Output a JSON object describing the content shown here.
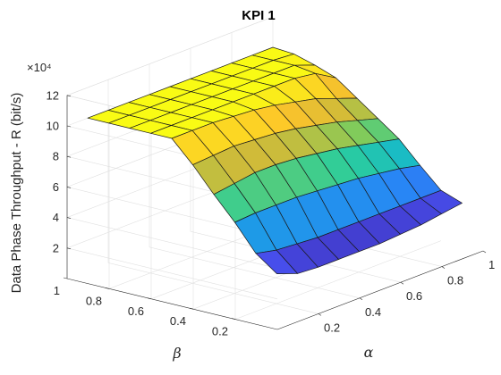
{
  "chart_data": {
    "type": "surface",
    "title": "KPI 1",
    "zlabel": "Data Phase Throughput - R (bit/s)",
    "xlabel": "α",
    "ylabel": "β",
    "zscale_label": "×10⁴",
    "xlim": [
      0,
      1
    ],
    "ylim": [
      0,
      1
    ],
    "zlim": [
      0,
      12
    ],
    "x_ticks": [
      0.2,
      0.4,
      0.6,
      0.8,
      1
    ],
    "y_ticks": [
      0.2,
      0.4,
      0.6,
      0.8,
      1
    ],
    "z_ticks": [
      2,
      4,
      6,
      8,
      10,
      12
    ],
    "grid": "on",
    "colormap": "parula",
    "alpha": [
      0.1,
      0.2,
      0.3,
      0.4,
      0.5,
      0.6,
      0.7,
      0.8,
      0.9,
      1.0
    ],
    "beta": [
      1.0,
      0.9,
      0.8,
      0.7,
      0.6,
      0.5,
      0.4,
      0.3,
      0.2,
      0.1
    ],
    "z_rows_by_beta": [
      [
        10.0,
        10.0,
        10.0,
        10.0,
        10.0,
        10.0,
        10.0,
        10.0,
        10.0,
        10.0
      ],
      [
        10.0,
        10.0,
        10.0,
        10.0,
        10.0,
        10.0,
        10.0,
        10.0,
        10.0,
        9.9
      ],
      [
        10.0,
        10.0,
        10.0,
        10.0,
        10.0,
        10.0,
        10.0,
        10.0,
        10.0,
        9.5
      ],
      [
        10.0,
        10.0,
        10.0,
        10.0,
        10.0,
        10.0,
        10.0,
        10.0,
        9.8,
        9.0
      ],
      [
        10.0,
        10.0,
        10.0,
        9.9,
        9.8,
        9.6,
        9.3,
        9.0,
        8.5,
        8.0
      ],
      [
        8.6,
        8.7,
        8.8,
        8.7,
        8.6,
        8.4,
        8.1,
        7.8,
        7.4,
        7.0
      ],
      [
        7.0,
        7.2,
        7.4,
        7.4,
        7.3,
        7.1,
        6.9,
        6.6,
        6.3,
        6.0
      ],
      [
        5.5,
        5.6,
        5.6,
        5.6,
        5.5,
        5.4,
        5.3,
        5.1,
        4.9,
        4.6
      ],
      [
        3.8,
        3.5,
        3.4,
        3.3,
        3.3,
        3.3,
        3.3,
        3.3,
        3.3,
        3.3
      ],
      [
        2.8,
        2.3,
        2.2,
        2.2,
        2.2,
        2.2,
        2.3,
        2.4,
        2.6,
        2.8
      ]
    ]
  }
}
